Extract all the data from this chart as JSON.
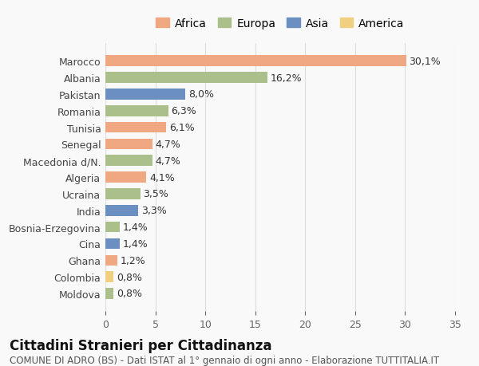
{
  "categories": [
    "Marocco",
    "Albania",
    "Pakistan",
    "Romania",
    "Tunisia",
    "Senegal",
    "Macedonia d/N.",
    "Algeria",
    "Ucraina",
    "India",
    "Bosnia-Erzegovina",
    "Cina",
    "Ghana",
    "Colombia",
    "Moldova"
  ],
  "values": [
    30.1,
    16.2,
    8.0,
    6.3,
    6.1,
    4.7,
    4.7,
    4.1,
    3.5,
    3.3,
    1.4,
    1.4,
    1.2,
    0.8,
    0.8
  ],
  "labels": [
    "30,1%",
    "16,2%",
    "8,0%",
    "6,3%",
    "6,1%",
    "4,7%",
    "4,7%",
    "4,1%",
    "3,5%",
    "3,3%",
    "1,4%",
    "1,4%",
    "1,2%",
    "0,8%",
    "0,8%"
  ],
  "continents": [
    "Africa",
    "Europa",
    "Asia",
    "Europa",
    "Africa",
    "Africa",
    "Europa",
    "Africa",
    "Europa",
    "Asia",
    "Europa",
    "Asia",
    "Africa",
    "America",
    "Europa"
  ],
  "continent_colors": {
    "Africa": "#F0A882",
    "Europa": "#ABBF8A",
    "Asia": "#6A8FC0",
    "America": "#F0D080"
  },
  "legend_order": [
    "Africa",
    "Europa",
    "Asia",
    "America"
  ],
  "title": "Cittadini Stranieri per Cittadinanza",
  "subtitle": "COMUNE DI ADRO (BS) - Dati ISTAT al 1° gennaio di ogni anno - Elaborazione TUTTITALIA.IT",
  "xlim": [
    0,
    35
  ],
  "xticks": [
    0,
    5,
    10,
    15,
    20,
    25,
    30,
    35
  ],
  "bg_color": "#f9f9f9",
  "grid_color": "#dddddd",
  "bar_height": 0.65,
  "label_fontsize": 9,
  "tick_fontsize": 9,
  "title_fontsize": 12,
  "subtitle_fontsize": 8.5
}
